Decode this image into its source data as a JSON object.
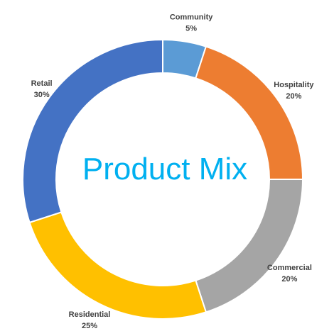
{
  "chart_data": {
    "type": "pie",
    "variant": "doughnut",
    "title": "Product Mix",
    "categories": [
      "Community",
      "Hospitality",
      "Commercial",
      "Residential",
      "Retail"
    ],
    "values": [
      5,
      20,
      20,
      25,
      30
    ],
    "value_labels": [
      "5%",
      "20%",
      "20%",
      "25%",
      "30%"
    ],
    "colors": [
      "#5b9bd5",
      "#ed7d31",
      "#a5a5a5",
      "#ffc000",
      "#4472c4"
    ],
    "title_color": "#00b0f0",
    "label_color": "#404040",
    "legend": "none",
    "start_angle": "12 o'clock, clockwise"
  }
}
